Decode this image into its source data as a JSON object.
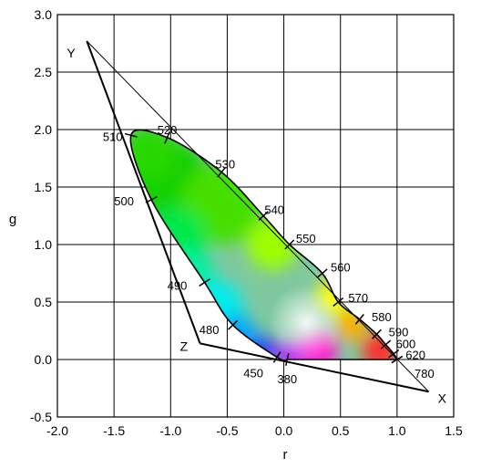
{
  "chart_data": {
    "type": "scatter",
    "xlabel": "r",
    "ylabel": "g",
    "xlim": [
      -2.0,
      1.5
    ],
    "ylim": [
      -0.5,
      3.0
    ],
    "x_ticks": [
      -2.0,
      -1.5,
      -1.0,
      -0.5,
      0.0,
      0.5,
      1.0,
      1.5
    ],
    "y_ticks": [
      -0.5,
      0.0,
      0.5,
      1.0,
      1.5,
      2.0,
      2.5,
      3.0
    ],
    "x_tick_labels": [
      "-2.0",
      "-1.5",
      "-1.0",
      "-0.5",
      "0.0",
      "0.5",
      "1.0",
      "1.5"
    ],
    "y_tick_labels": [
      "-0.5",
      "0.0",
      "0.5",
      "1.0",
      "1.5",
      "2.0",
      "2.5",
      "3.0"
    ],
    "grid": true,
    "primaries_triangle": [
      {
        "label": "X",
        "r": 1.28,
        "g": -0.28
      },
      {
        "label": "Y",
        "r": -1.74,
        "g": 2.77
      },
      {
        "label": "Z",
        "r": -0.74,
        "g": 0.14
      }
    ],
    "spectral_locus": [
      {
        "label": "380",
        "r": 0.03,
        "g": 0.0
      },
      {
        "label": "450",
        "r": -0.06,
        "g": 0.02
      },
      {
        "label": "480",
        "r": -0.45,
        "g": 0.3
      },
      {
        "label": "490",
        "r": -0.7,
        "g": 0.67
      },
      {
        "label": "500",
        "r": -1.17,
        "g": 1.39
      },
      {
        "label": "510",
        "r": -1.35,
        "g": 1.95
      },
      {
        "label": "520",
        "r": -1.03,
        "g": 1.93
      },
      {
        "label": "530",
        "r": -0.55,
        "g": 1.63
      },
      {
        "label": "540",
        "r": -0.18,
        "g": 1.25
      },
      {
        "label": "550",
        "r": 0.05,
        "g": 1.0
      },
      {
        "label": "560",
        "r": 0.34,
        "g": 0.75
      },
      {
        "label": "570",
        "r": 0.48,
        "g": 0.5
      },
      {
        "label": "580",
        "r": 0.67,
        "g": 0.35
      },
      {
        "label": "590",
        "r": 0.82,
        "g": 0.22
      },
      {
        "label": "600",
        "r": 0.9,
        "g": 0.13
      },
      {
        "label": "620",
        "r": 0.97,
        "g": 0.05
      },
      {
        "label": "780",
        "r": 1.0,
        "g": 0.0
      }
    ]
  }
}
